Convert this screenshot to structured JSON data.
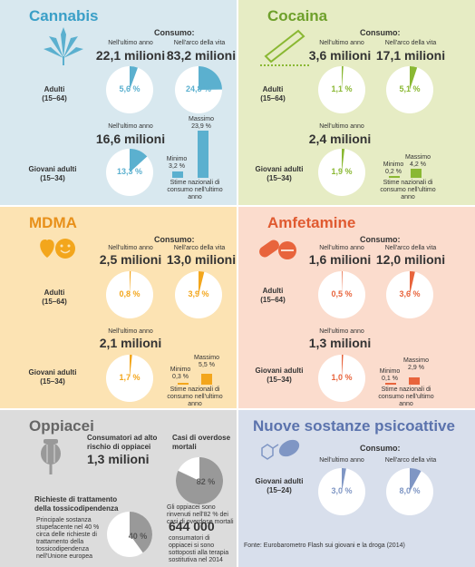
{
  "cannabis": {
    "title": "Cannabis",
    "consumo": "Consumo:",
    "last_year": "Nell'ultimo anno",
    "lifetime": "Nell'arco della vita",
    "adults": {
      "label": "Adulti",
      "age": "(15–64)",
      "n1": "22,1 milioni",
      "n2": "83,2 milioni",
      "p1": "5,6 %",
      "p2": "24,8 %",
      "v1": 5.6,
      "v2": 24.8
    },
    "young": {
      "label": "Giovani adulti",
      "age": "(15–34)",
      "n1": "16,6 milioni",
      "p1": "13,3 %",
      "v1": 13.3,
      "min_label": "Minimo",
      "min": "3,2 %",
      "max_label": "Massimo",
      "max": "23,9 %",
      "note": "Stime nazionali di consumo nell'ultimo anno",
      "vmin": 3.2,
      "vmax": 23.9
    }
  },
  "cocaina": {
    "title": "Cocaina",
    "consumo": "Consumo:",
    "last_year": "Nell'ultimo anno",
    "lifetime": "Nell'arco della vita",
    "adults": {
      "label": "Adulti",
      "age": "(15–64)",
      "n1": "3,6 milioni",
      "n2": "17,1 milioni",
      "p1": "1,1 %",
      "p2": "5,1 %",
      "v1": 1.1,
      "v2": 5.1
    },
    "young": {
      "label": "Giovani adulti",
      "age": "(15–34)",
      "n1": "2,4 milioni",
      "p1": "1,9 %",
      "v1": 1.9,
      "min_label": "Minimo",
      "min": "0,2 %",
      "max_label": "Massimo",
      "max": "4,2 %",
      "note": "Stime nazionali di consumo nell'ultimo anno",
      "vmin": 0.2,
      "vmax": 4.2
    }
  },
  "mdma": {
    "title": "MDMA",
    "consumo": "Consumo:",
    "last_year": "Nell'ultimo anno",
    "lifetime": "Nell'arco della vita",
    "adults": {
      "label": "Adulti",
      "age": "(15–64)",
      "n1": "2,5 milioni",
      "n2": "13,0 milioni",
      "p1": "0,8 %",
      "p2": "3,9 %",
      "v1": 0.8,
      "v2": 3.9
    },
    "young": {
      "label": "Giovani adulti",
      "age": "(15–34)",
      "n1": "2,1 milioni",
      "p1": "1,7 %",
      "v1": 1.7,
      "min_label": "Minimo",
      "min": "0,3 %",
      "max_label": "Massimo",
      "max": "5,5 %",
      "note": "Stime nazionali di consumo nell'ultimo anno",
      "vmin": 0.3,
      "vmax": 5.5
    }
  },
  "amfetamine": {
    "title": "Amfetamine",
    "consumo": "Consumo:",
    "last_year": "Nell'ultimo anno",
    "lifetime": "Nell'arco della vita",
    "adults": {
      "label": "Adulti",
      "age": "(15–64)",
      "n1": "1,6 milioni",
      "n2": "12,0 milioni",
      "p1": "0,5 %",
      "p2": "3,6 %",
      "v1": 0.5,
      "v2": 3.6
    },
    "young": {
      "label": "Giovani adulti",
      "age": "(15–34)",
      "n1": "1,3 milioni",
      "p1": "1,0 %",
      "v1": 1.0,
      "min_label": "Minimo",
      "min": "0,1 %",
      "max_label": "Massimo",
      "max": "2,9 %",
      "note": "Stime nazionali di consumo nell'ultimo anno",
      "vmin": 0.1,
      "vmax": 2.9
    }
  },
  "oppiacei": {
    "title": "Oppiacei",
    "high_risk_label": "Consumatori ad alto rischio di oppiacei",
    "high_risk": "1,3 milioni",
    "overdose_label": "Casi di overdose mortali",
    "overdose_pct": "82 %",
    "overdose_v": 82,
    "overdose_note": "Gli oppiacei sono rinvenuti nell'82 % dei casi di overdose mortali",
    "treatment_label": "Richieste di trattamento della tossicodipendenza",
    "treatment_note": "Principale sostanza stupefacente nel 40 % circa delle richieste di trattamento della tossicodipendenza nell'Unione europea",
    "treatment_pct": "40 %",
    "treatment_v": 40,
    "subst_n": "644 000",
    "subst_note": "consumatori di oppiacei si sono sottoposti alla terapia sostitutiva nel 2014"
  },
  "nps": {
    "title": "Nuove sostanze psicoattive",
    "consumo": "Consumo:",
    "last_year": "Nell'ultimo anno",
    "lifetime": "Nell'arco della vita",
    "young": {
      "label": "Giovani adulti",
      "age": "(15–24)",
      "p1": "3,0 %",
      "p2": "8,0 %",
      "v1": 3.0,
      "v2": 8.0
    },
    "source": "Fonte: Eurobarometro Flash sui giovani e la droga (2014)"
  },
  "colors": {
    "cannabis_bg": "#d8e8ef",
    "cannabis": "#5bb0cf",
    "cocaina_bg": "#e6ecc4",
    "cocaina": "#8ab833",
    "mdma_bg": "#fce3b3",
    "mdma": "#f3a61c",
    "amf_bg": "#fbdccd",
    "amf": "#e8643c",
    "opp_bg": "#dcdcdc",
    "opp": "#999999",
    "nps_bg": "#d8dfec",
    "nps": "#7f96c4"
  }
}
